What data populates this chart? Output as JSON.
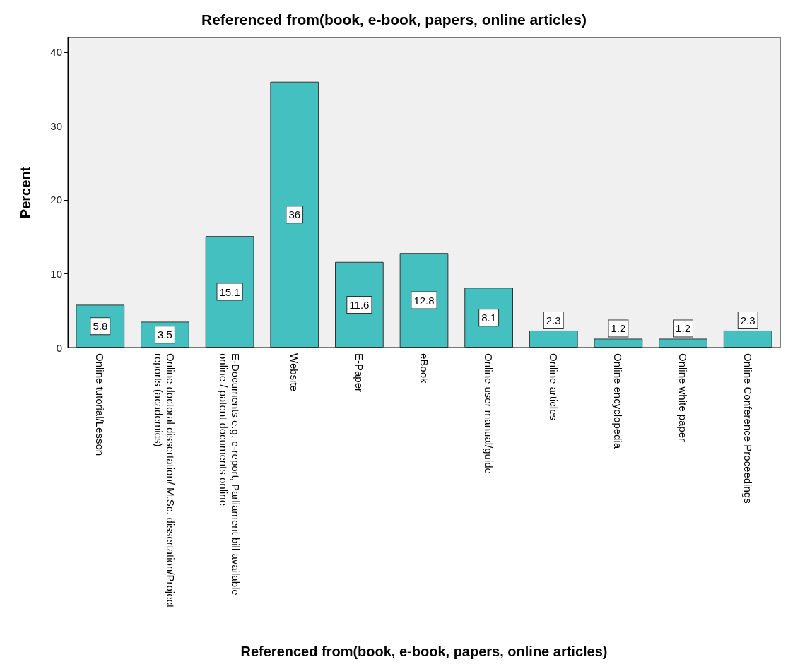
{
  "chart_data": {
    "type": "bar",
    "title": "Referenced from(book, e-book, papers, online articles)",
    "xlabel": "Referenced from(book, e-book, papers, online articles)",
    "ylabel": "Percent",
    "categories": [
      "Online tutorial/Lesson",
      "Online doctoral dissertation/ M.Sc. dissertation/Project reports (academics)",
      "E-Documents e.g. e-report, Parliament bill available online / patent documents online",
      "Website",
      "E-Paper",
      "eBook",
      "Online user manual/guide",
      "Online articles",
      "Online encyclopedia",
      "Online white paper",
      "Online Conference Proceedings"
    ],
    "values": [
      5.8,
      3.5,
      15.1,
      36,
      11.6,
      12.8,
      8.1,
      2.3,
      1.2,
      1.2,
      2.3
    ],
    "color": "#45c0c0",
    "ylim": [
      0,
      42
    ],
    "yticks": [
      0,
      10,
      20,
      30,
      40
    ],
    "grid": false,
    "data_labels": true
  }
}
